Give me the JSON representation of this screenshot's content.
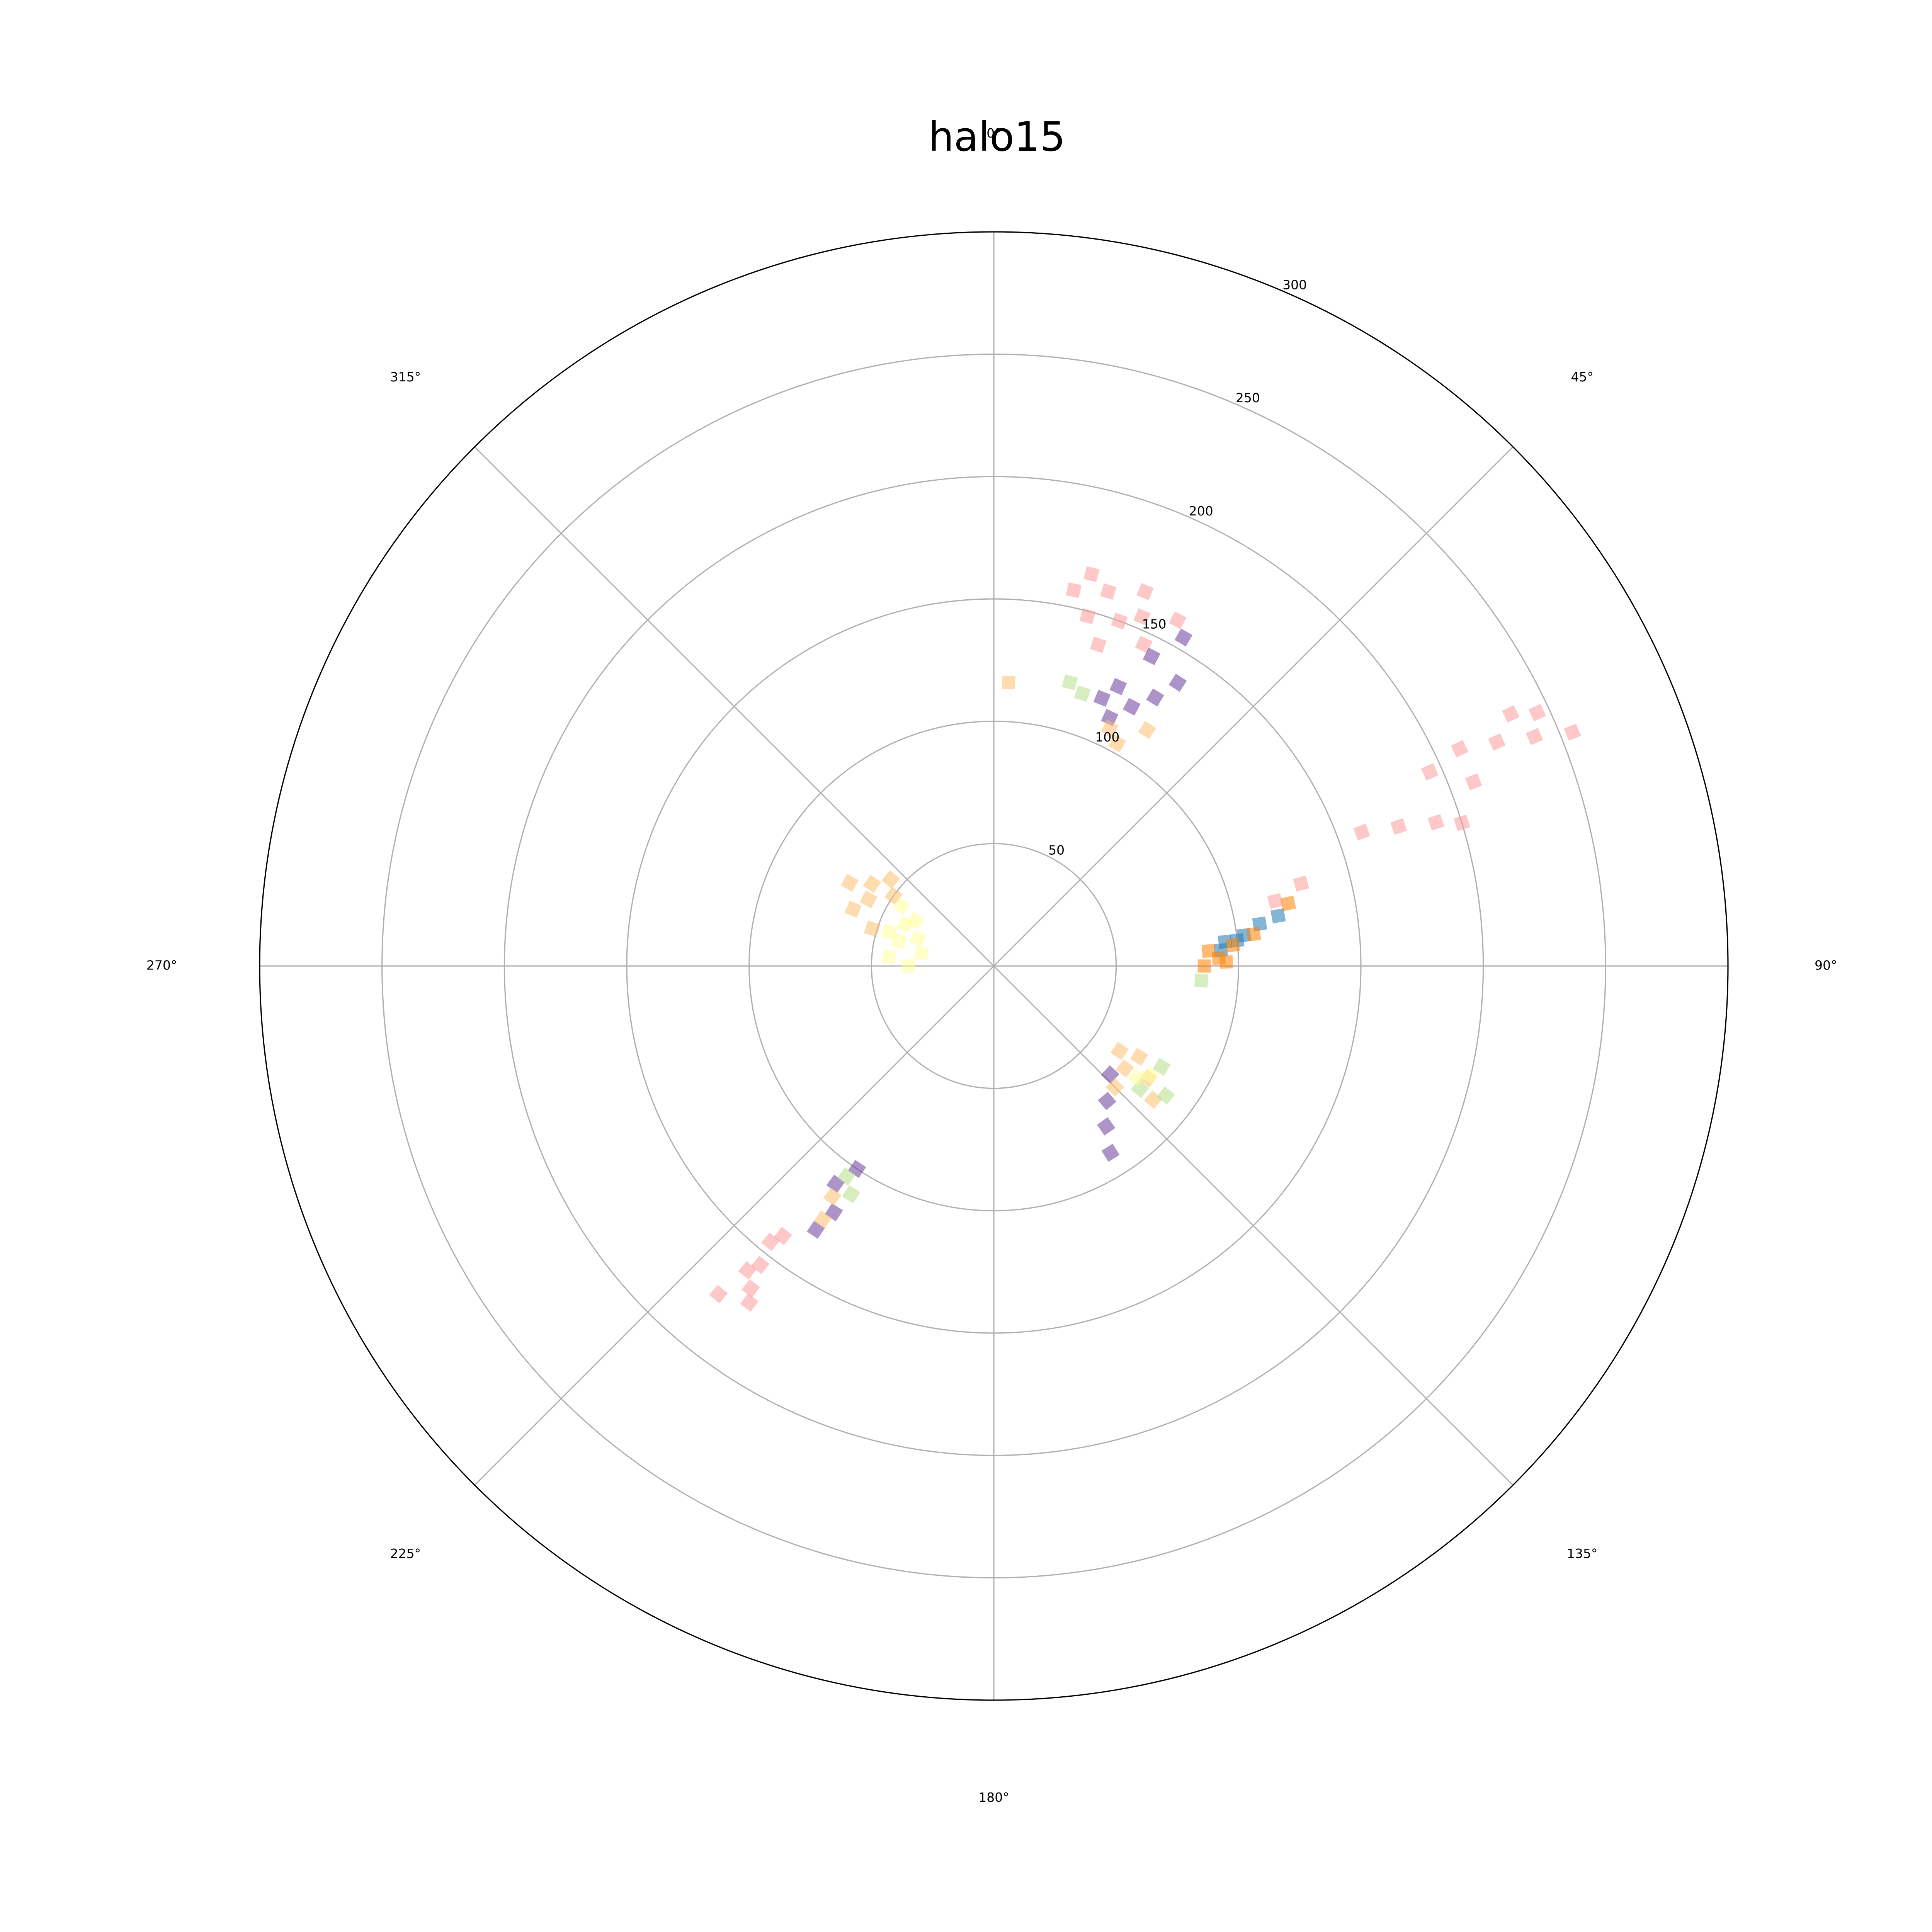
{
  "chart_data": {
    "type": "scatter",
    "projection": "polar",
    "title": "halo15",
    "theta_direction": "clockwise",
    "theta_zero": "top",
    "theta_ticks": [
      0,
      45,
      90,
      135,
      180,
      225,
      270,
      315
    ],
    "theta_tick_labels": [
      "0°",
      "45°",
      "90°",
      "135°",
      "180°",
      "225°",
      "270°",
      "315°"
    ],
    "r_ticks": [
      50,
      100,
      150,
      200,
      250,
      300
    ],
    "r_tick_labels": [
      "50",
      "100",
      "150",
      "200",
      "250",
      "300"
    ],
    "r_label_angle": 22.5,
    "rlim": [
      0,
      300
    ],
    "grid": true,
    "marker": "square",
    "alpha": 0.55,
    "palette": {
      "pink": "#fb9a99",
      "purple": "#6a3d9a",
      "light_orange": "#fdbf6f",
      "light_green": "#b2df8a",
      "light_yellow": "#ffff99",
      "blue": "#1f78b4",
      "orange": "#ff7f00"
    },
    "series": [
      {
        "color": "pink",
        "points": [
          {
            "theta": 17,
            "r": 160
          },
          {
            "theta": 20,
            "r": 150
          },
          {
            "theta": 23,
            "r": 155
          },
          {
            "theta": 15,
            "r": 148
          },
          {
            "theta": 25,
            "r": 145
          },
          {
            "theta": 12,
            "r": 157
          },
          {
            "theta": 18,
            "r": 138
          },
          {
            "theta": 22,
            "r": 165
          },
          {
            "theta": 28,
            "r": 160
          },
          {
            "theta": 14,
            "r": 165
          },
          {
            "theta": 65,
            "r": 210
          },
          {
            "theta": 66,
            "r": 225
          },
          {
            "theta": 67,
            "r": 240
          },
          {
            "theta": 68,
            "r": 255
          },
          {
            "theta": 70,
            "r": 160
          },
          {
            "theta": 71,
            "r": 175
          },
          {
            "theta": 72,
            "r": 190
          },
          {
            "theta": 73,
            "r": 200
          },
          {
            "theta": 75,
            "r": 130
          },
          {
            "theta": 77,
            "r": 118
          },
          {
            "theta": 64,
            "r": 235
          },
          {
            "theta": 69,
            "r": 210
          },
          {
            "theta": 66,
            "r": 195
          },
          {
            "theta": 65,
            "r": 245
          },
          {
            "theta": 217,
            "r": 165
          },
          {
            "theta": 218,
            "r": 155
          },
          {
            "theta": 219,
            "r": 145
          },
          {
            "theta": 220,
            "r": 175
          },
          {
            "theta": 216,
            "r": 170
          },
          {
            "theta": 218,
            "r": 140
          },
          {
            "theta": 219,
            "r": 160
          }
        ]
      },
      {
        "color": "purple",
        "points": [
          {
            "theta": 24,
            "r": 125
          },
          {
            "theta": 27,
            "r": 142
          },
          {
            "theta": 30,
            "r": 155
          },
          {
            "theta": 22,
            "r": 118
          },
          {
            "theta": 28,
            "r": 120
          },
          {
            "theta": 33,
            "r": 138
          },
          {
            "theta": 31,
            "r": 128
          },
          {
            "theta": 25,
            "r": 112
          },
          {
            "theta": 133,
            "r": 65
          },
          {
            "theta": 140,
            "r": 72
          },
          {
            "theta": 145,
            "r": 80
          },
          {
            "theta": 148,
            "r": 90
          },
          {
            "theta": 213,
            "r": 120
          },
          {
            "theta": 214,
            "r": 130
          },
          {
            "theta": 216,
            "r": 110
          },
          {
            "theta": 214,
            "r": 100
          }
        ]
      },
      {
        "color": "light_orange",
        "points": [
          {
            "theta": 3,
            "r": 116
          },
          {
            "theta": 26,
            "r": 108
          },
          {
            "theta": 29,
            "r": 104
          },
          {
            "theta": 33,
            "r": 115
          },
          {
            "theta": 292,
            "r": 62
          },
          {
            "theta": 298,
            "r": 58
          },
          {
            "theta": 304,
            "r": 60
          },
          {
            "theta": 310,
            "r": 55
          },
          {
            "theta": 300,
            "r": 68
          },
          {
            "theta": 287,
            "r": 52
          },
          {
            "theta": 305,
            "r": 50
          },
          {
            "theta": 122,
            "r": 70
          },
          {
            "theta": 126,
            "r": 78
          },
          {
            "theta": 130,
            "r": 85
          },
          {
            "theta": 128,
            "r": 68
          },
          {
            "theta": 135,
            "r": 70
          },
          {
            "theta": 124,
            "r": 62
          },
          {
            "theta": 214,
            "r": 125
          },
          {
            "theta": 215,
            "r": 115
          }
        ]
      },
      {
        "color": "light_green",
        "points": [
          {
            "theta": 15,
            "r": 120
          },
          {
            "theta": 18,
            "r": 117
          },
          {
            "theta": 94,
            "r": 85
          },
          {
            "theta": 130,
            "r": 78
          },
          {
            "theta": 127,
            "r": 88
          },
          {
            "theta": 121,
            "r": 80
          },
          {
            "theta": 212,
            "r": 110
          },
          {
            "theta": 215,
            "r": 105
          }
        ]
      },
      {
        "color": "light_yellow",
        "points": [
          {
            "theta": 285,
            "r": 40
          },
          {
            "theta": 290,
            "r": 33
          },
          {
            "theta": 295,
            "r": 40
          },
          {
            "theta": 280,
            "r": 30
          },
          {
            "theta": 288,
            "r": 45
          },
          {
            "theta": 300,
            "r": 37
          },
          {
            "theta": 303,
            "r": 45
          },
          {
            "theta": 270,
            "r": 35
          },
          {
            "theta": 275,
            "r": 43
          },
          {
            "theta": 125,
            "r": 78
          },
          {
            "theta": 128,
            "r": 74
          }
        ]
      },
      {
        "color": "blue",
        "points": [
          {
            "theta": 84,
            "r": 100
          },
          {
            "theta": 84,
            "r": 95
          },
          {
            "theta": 81,
            "r": 110
          },
          {
            "theta": 80,
            "r": 118
          },
          {
            "theta": 86,
            "r": 93
          },
          {
            "theta": 83,
            "r": 103
          }
        ]
      },
      {
        "color": "orange",
        "points": [
          {
            "theta": 86,
            "r": 88
          },
          {
            "theta": 88,
            "r": 92
          },
          {
            "theta": 85,
            "r": 98
          },
          {
            "theta": 90,
            "r": 86
          },
          {
            "theta": 83,
            "r": 107
          },
          {
            "theta": 89,
            "r": 95
          },
          {
            "theta": 78,
            "r": 123
          }
        ]
      }
    ]
  }
}
